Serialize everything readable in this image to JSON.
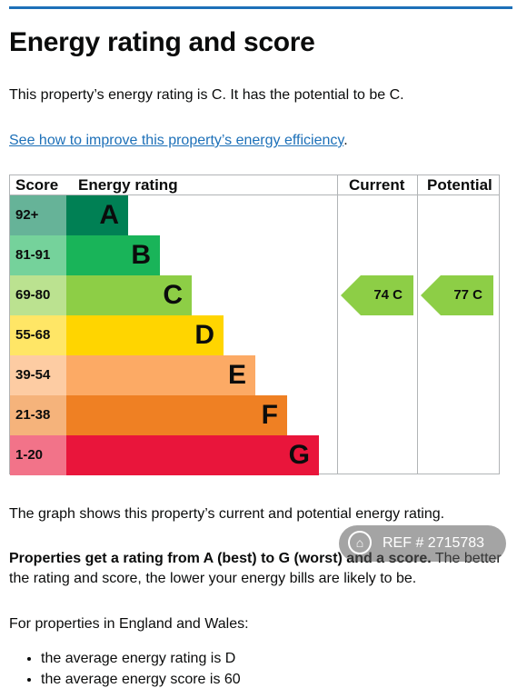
{
  "title": "Energy rating and score",
  "intro": "This property’s energy rating is C. It has the potential to be C.",
  "link": {
    "text": "See how to improve this property’s energy efficiency",
    "suffix": "."
  },
  "table": {
    "headers": {
      "score": "Score",
      "rating": "Energy rating",
      "current": "Current",
      "potential": "Potential"
    },
    "bands": [
      {
        "score": "92+",
        "letter": "A",
        "color": "#008054",
        "score_bg": "#66b398"
      },
      {
        "score": "81-91",
        "letter": "B",
        "color": "#19b459",
        "score_bg": "#75d29b"
      },
      {
        "score": "69-80",
        "letter": "C",
        "color": "#8dce46",
        "score_bg": "#bbe290"
      },
      {
        "score": "55-68",
        "letter": "D",
        "color": "#ffd500",
        "score_bg": "#ffe666"
      },
      {
        "score": "39-54",
        "letter": "E",
        "color": "#fcaa65",
        "score_bg": "#fdcca3"
      },
      {
        "score": "21-38",
        "letter": "F",
        "color": "#ef8023",
        "score_bg": "#f5b37b"
      },
      {
        "score": "1-20",
        "letter": "G",
        "color": "#e9153b",
        "score_bg": "#f27389"
      }
    ],
    "current": {
      "label": "74  C",
      "band_index": 2,
      "color": "#8dce46"
    },
    "potential": {
      "label": "77  C",
      "band_index": 2,
      "color": "#8dce46"
    }
  },
  "graph_note": "The graph shows this property’s current and potential energy rating.",
  "rating_info": {
    "bold": "Properties get a rating from A (best) to G (worst) and a score.",
    "rest": " The better the rating and score, the lower your energy bills are likely to be."
  },
  "england_wales": "For properties in England and Wales:",
  "bullets": [
    "the average energy rating is D",
    "the average energy score is 60"
  ],
  "watermark": {
    "text": "REF # 2715783",
    "icon": "home-icon"
  }
}
